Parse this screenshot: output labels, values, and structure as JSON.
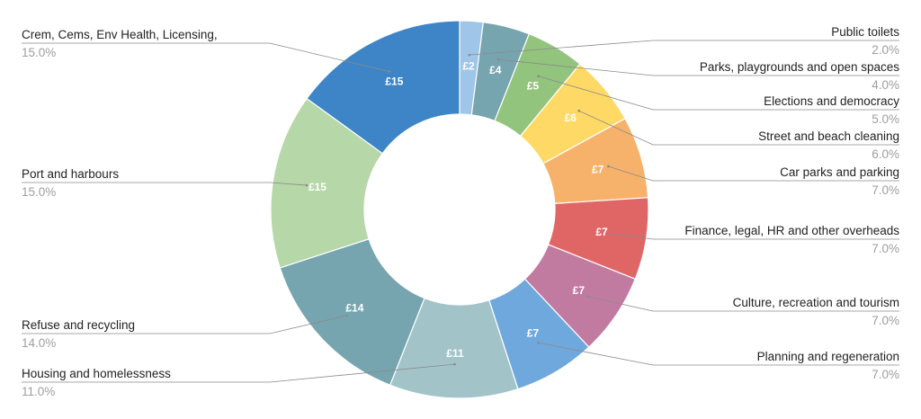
{
  "chart_data": {
    "type": "pie",
    "donut": true,
    "title": "",
    "slices": [
      {
        "label": "Public toilets",
        "value": 2,
        "value_label": "£2",
        "percent_label": "2.0%",
        "color": "#9fc5e8"
      },
      {
        "label": "Parks, playgrounds and open spaces",
        "value": 4,
        "value_label": "£4",
        "percent_label": "4.0%",
        "color": "#76a5af"
      },
      {
        "label": "Elections and democracy",
        "value": 5,
        "value_label": "£5",
        "percent_label": "5.0%",
        "color": "#93c47d"
      },
      {
        "label": "Street and beach cleaning",
        "value": 6,
        "value_label": "£6",
        "percent_label": "6.0%",
        "color": "#ffd966"
      },
      {
        "label": "Car parks and parking",
        "value": 7,
        "value_label": "£7",
        "percent_label": "7.0%",
        "color": "#f6b26b"
      },
      {
        "label": "Finance, legal, HR and other overheads",
        "value": 7,
        "value_label": "£7",
        "percent_label": "7.0%",
        "color": "#e06666"
      },
      {
        "label": "Culture, recreation and tourism",
        "value": 7,
        "value_label": "£7",
        "percent_label": "7.0%",
        "color": "#c27ba0"
      },
      {
        "label": "Planning and regeneration",
        "value": 7,
        "value_label": "£7",
        "percent_label": "7.0%",
        "color": "#6fa8dc"
      },
      {
        "label": "Housing and homelessness",
        "value": 11,
        "value_label": "£11",
        "percent_label": "11.0%",
        "color": "#a2c4c9"
      },
      {
        "label": "Refuse and recycling",
        "value": 14,
        "value_label": "£14",
        "percent_label": "14.0%",
        "color": "#76a5af"
      },
      {
        "label": "Port and harbours",
        "value": 15,
        "value_label": "£15",
        "percent_label": "15.0%",
        "color": "#b6d7a8"
      },
      {
        "label": "Crem, Cems, Env Health, Licensing,",
        "value": 15,
        "value_label": "£15",
        "percent_label": "15.0%",
        "color": "#3d85c6"
      }
    ]
  }
}
